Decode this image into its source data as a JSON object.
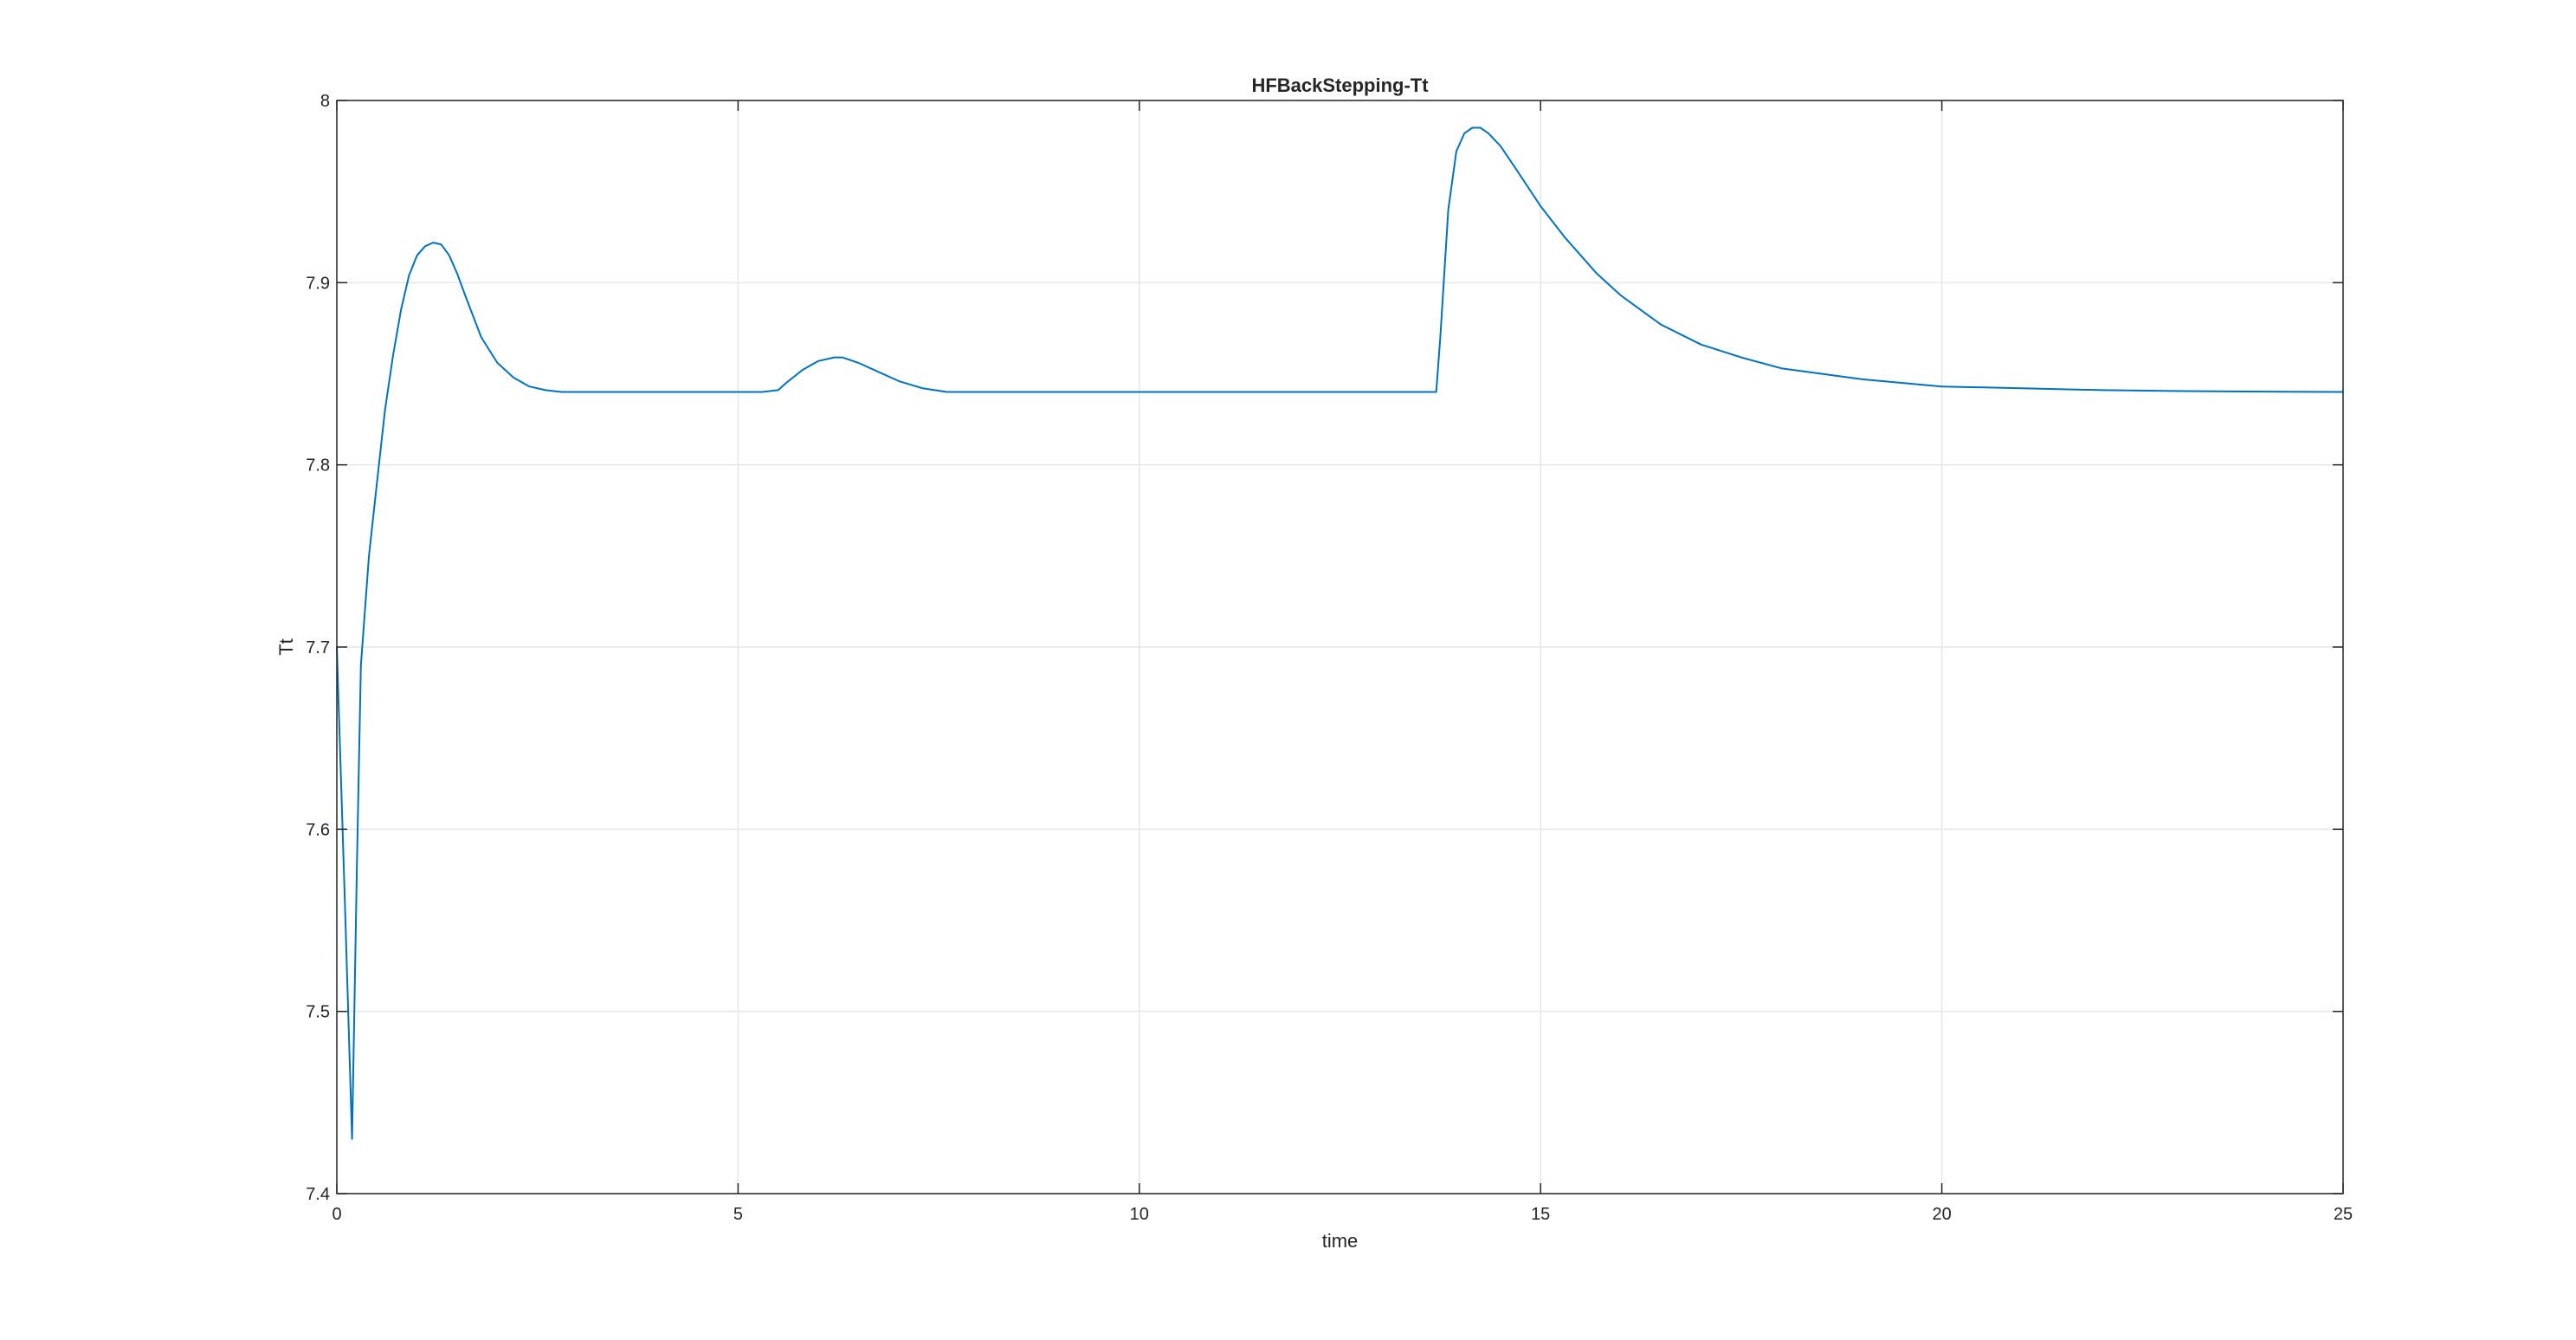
{
  "chart_data": {
    "type": "line",
    "title": "HFBackStepping-Tt",
    "xlabel": "time",
    "ylabel": "Tt",
    "xlim": [
      0,
      25
    ],
    "ylim": [
      7.4,
      8
    ],
    "xticks": [
      0,
      5,
      10,
      15,
      20,
      25
    ],
    "yticks": [
      7.4,
      7.5,
      7.6,
      7.7,
      7.8,
      7.9,
      8
    ],
    "xtick_labels": [
      "0",
      "5",
      "10",
      "15",
      "20",
      "25"
    ],
    "ytick_labels": [
      "7.4",
      "7.5",
      "7.6",
      "7.7",
      "7.8",
      "7.9",
      "8"
    ],
    "grid": true,
    "series": [
      {
        "color": "#0072BD",
        "x": [
          0,
          0.1,
          0.19,
          0.25,
          0.3,
          0.4,
          0.5,
          0.6,
          0.7,
          0.8,
          0.9,
          1.0,
          1.1,
          1.2,
          1.3,
          1.4,
          1.5,
          1.6,
          1.8,
          2.0,
          2.2,
          2.4,
          2.6,
          2.8,
          3.0,
          3.2,
          3.5,
          4.0,
          4.5,
          5.0,
          5.3,
          5.5,
          5.6,
          5.8,
          6.0,
          6.2,
          6.3,
          6.5,
          6.7,
          7.0,
          7.3,
          7.6,
          8.0,
          9.0,
          10.0,
          11.0,
          12.0,
          13.0,
          13.7,
          13.75,
          13.85,
          13.95,
          14.05,
          14.15,
          14.25,
          14.35,
          14.5,
          14.7,
          15.0,
          15.3,
          15.7,
          16.0,
          16.5,
          17.0,
          17.5,
          18.0,
          19.0,
          20.0,
          21.0,
          22.0,
          23.0,
          24.0,
          25.0
        ],
        "y": [
          7.7,
          7.56,
          7.43,
          7.58,
          7.69,
          7.75,
          7.79,
          7.83,
          7.86,
          7.885,
          7.904,
          7.915,
          7.92,
          7.922,
          7.921,
          7.915,
          7.905,
          7.893,
          7.87,
          7.856,
          7.848,
          7.843,
          7.841,
          7.84,
          7.84,
          7.84,
          7.84,
          7.84,
          7.84,
          7.84,
          7.84,
          7.841,
          7.845,
          7.852,
          7.857,
          7.859,
          7.859,
          7.856,
          7.852,
          7.846,
          7.842,
          7.84,
          7.84,
          7.84,
          7.84,
          7.84,
          7.84,
          7.84,
          7.84,
          7.87,
          7.94,
          7.972,
          7.982,
          7.985,
          7.985,
          7.982,
          7.975,
          7.962,
          7.942,
          7.925,
          7.905,
          7.893,
          7.877,
          7.866,
          7.859,
          7.853,
          7.847,
          7.843,
          7.842,
          7.841,
          7.8405,
          7.8402,
          7.84
        ]
      }
    ]
  }
}
